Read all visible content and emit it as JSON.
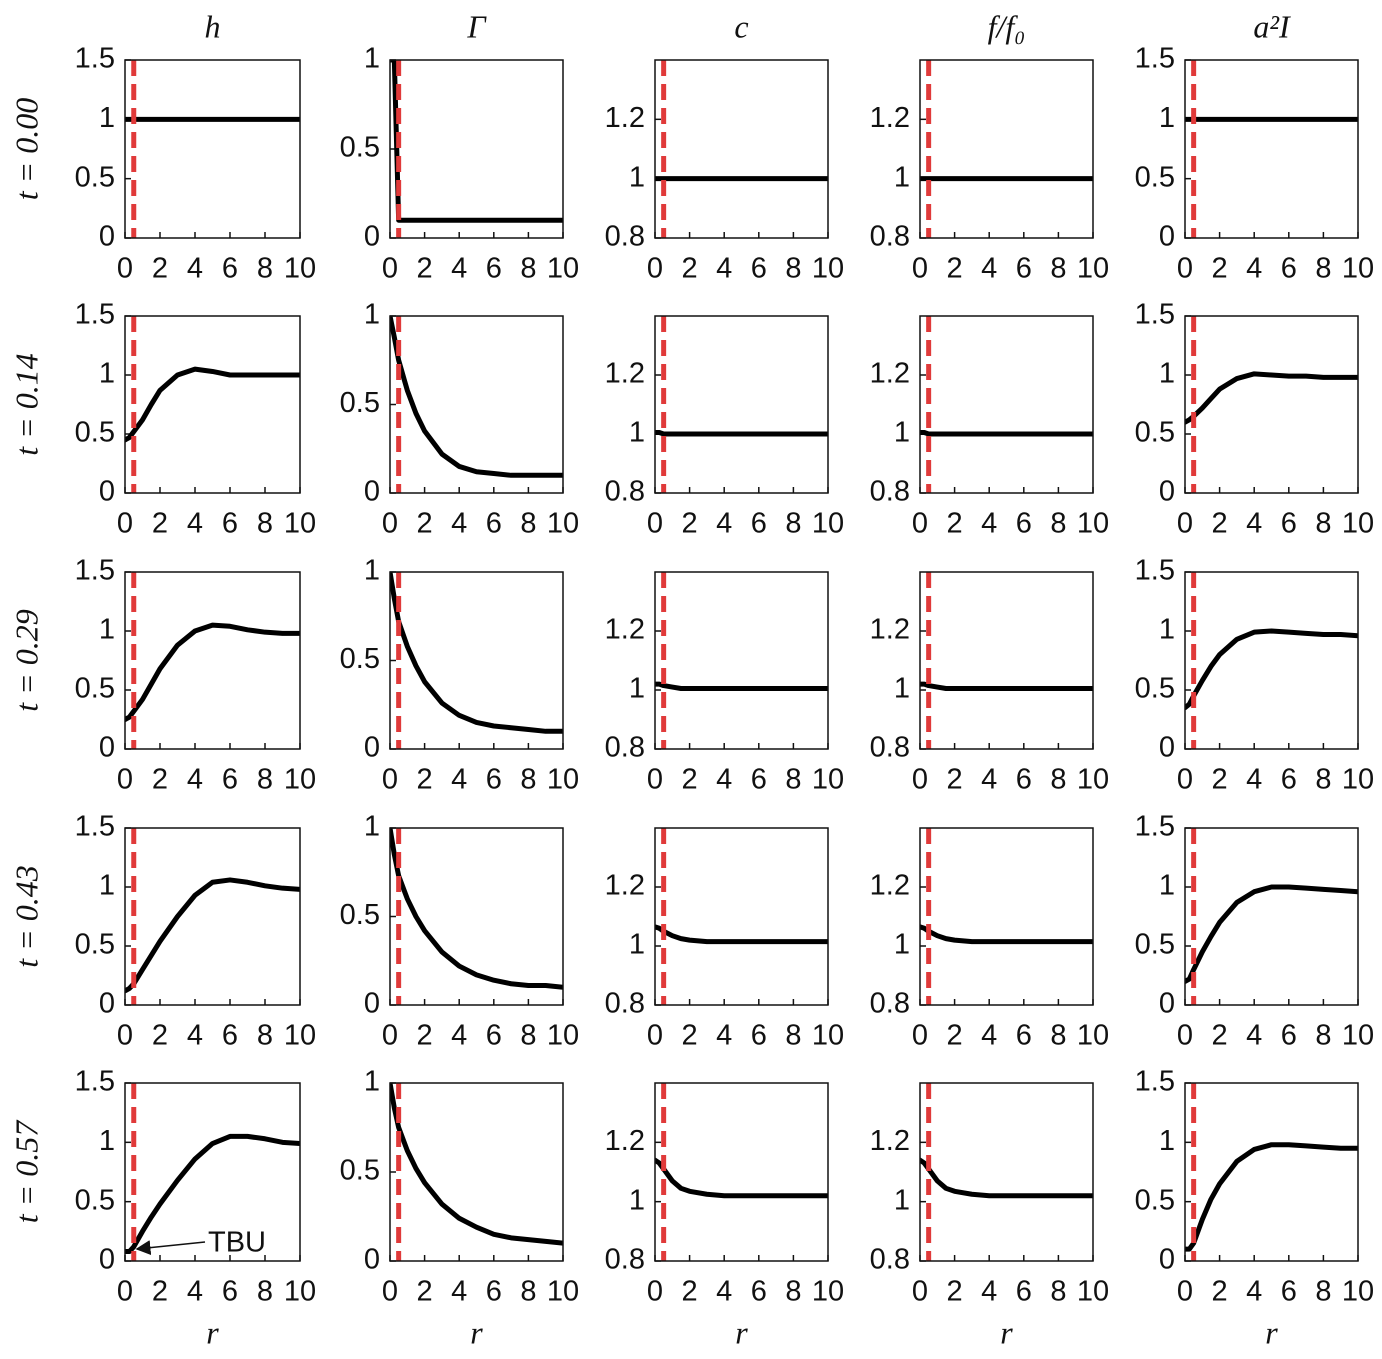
{
  "columns": [
    "h",
    "Γ",
    "c",
    "f/f₀",
    "a²I"
  ],
  "rows": [
    "t = 0.00",
    "t = 0.14",
    "t = 0.29",
    "t = 0.43",
    "t = 0.57"
  ],
  "x_label": "r",
  "chart_data": [
    {
      "type": "line",
      "x": [
        0,
        0.25,
        0.5,
        1,
        1.5,
        2,
        3,
        4,
        5,
        6,
        7,
        8,
        9,
        10
      ],
      "values": [
        1,
        1,
        1,
        1,
        1,
        1,
        1,
        1,
        1,
        1,
        1,
        1,
        1,
        1
      ],
      "color": "#000000",
      "xlim": [
        0,
        10
      ],
      "ylim": [
        0,
        1.5
      ],
      "xticks": [
        0,
        2,
        4,
        6,
        8,
        10
      ],
      "yticks": [
        0,
        0.5,
        1,
        1.5
      ],
      "vline": 0.5,
      "vline_color": "#e03a3a"
    },
    {
      "type": "line",
      "x": [
        0,
        0.25,
        0.5,
        1,
        1.5,
        2,
        3,
        4,
        5,
        6,
        7,
        8,
        9,
        10
      ],
      "values": [
        1,
        1,
        0.1,
        0.1,
        0.1,
        0.1,
        0.1,
        0.1,
        0.1,
        0.1,
        0.1,
        0.1,
        0.1,
        0.1
      ],
      "color": "#000000",
      "xlim": [
        0,
        10
      ],
      "ylim": [
        0,
        1
      ],
      "xticks": [
        0,
        2,
        4,
        6,
        8,
        10
      ],
      "yticks": [
        0,
        0.5,
        1
      ],
      "vline": 0.5,
      "vline_color": "#e03a3a"
    },
    {
      "type": "line",
      "x": [
        0,
        0.25,
        0.5,
        1,
        1.5,
        2,
        3,
        4,
        5,
        6,
        7,
        8,
        9,
        10
      ],
      "values": [
        1,
        1,
        1,
        1,
        1,
        1,
        1,
        1,
        1,
        1,
        1,
        1,
        1,
        1
      ],
      "color": "#000000",
      "xlim": [
        0,
        10
      ],
      "ylim": [
        0.8,
        1.4
      ],
      "xticks": [
        0,
        2,
        4,
        6,
        8,
        10
      ],
      "yticks": [
        0.8,
        1,
        1.2
      ],
      "vline": 0.5,
      "vline_color": "#e03a3a"
    },
    {
      "type": "line",
      "x": [
        0,
        0.25,
        0.5,
        1,
        1.5,
        2,
        3,
        4,
        5,
        6,
        7,
        8,
        9,
        10
      ],
      "values": [
        1,
        1,
        1,
        1,
        1,
        1,
        1,
        1,
        1,
        1,
        1,
        1,
        1,
        1
      ],
      "color": "#000000",
      "xlim": [
        0,
        10
      ],
      "ylim": [
        0.8,
        1.4
      ],
      "xticks": [
        0,
        2,
        4,
        6,
        8,
        10
      ],
      "yticks": [
        0.8,
        1,
        1.2
      ],
      "vline": 0.5,
      "vline_color": "#e03a3a"
    },
    {
      "type": "line",
      "x": [
        0,
        0.25,
        0.5,
        1,
        1.5,
        2,
        3,
        4,
        5,
        6,
        7,
        8,
        9,
        10
      ],
      "values": [
        1,
        1,
        1,
        1,
        1,
        1,
        1,
        1,
        1,
        1,
        1,
        1,
        1,
        1
      ],
      "color": "#000000",
      "xlim": [
        0,
        10
      ],
      "ylim": [
        0,
        1.5
      ],
      "xticks": [
        0,
        2,
        4,
        6,
        8,
        10
      ],
      "yticks": [
        0,
        0.5,
        1,
        1.5
      ],
      "vline": 0.5,
      "vline_color": "#e03a3a"
    },
    {
      "type": "line",
      "x": [
        0,
        0.25,
        0.5,
        1,
        1.5,
        2,
        3,
        4,
        5,
        6,
        7,
        8,
        9,
        10
      ],
      "values": [
        0.45,
        0.47,
        0.52,
        0.62,
        0.75,
        0.87,
        1.0,
        1.05,
        1.03,
        1.0,
        1.0,
        1.0,
        1.0,
        1.0
      ],
      "color": "#000000",
      "xlim": [
        0,
        10
      ],
      "ylim": [
        0,
        1.5
      ],
      "xticks": [
        0,
        2,
        4,
        6,
        8,
        10
      ],
      "yticks": [
        0,
        0.5,
        1,
        1.5
      ],
      "vline": 0.5,
      "vline_color": "#e03a3a"
    },
    {
      "type": "line",
      "x": [
        0,
        0.25,
        0.5,
        1,
        1.5,
        2,
        3,
        4,
        5,
        6,
        7,
        8,
        9,
        10
      ],
      "values": [
        1,
        0.88,
        0.75,
        0.58,
        0.45,
        0.35,
        0.22,
        0.15,
        0.12,
        0.11,
        0.1,
        0.1,
        0.1,
        0.1
      ],
      "color": "#000000",
      "xlim": [
        0,
        10
      ],
      "ylim": [
        0,
        1
      ],
      "xticks": [
        0,
        2,
        4,
        6,
        8,
        10
      ],
      "yticks": [
        0,
        0.5,
        1
      ],
      "vline": 0.5,
      "vline_color": "#e03a3a"
    },
    {
      "type": "line",
      "x": [
        0,
        0.25,
        0.5,
        1,
        1.5,
        2,
        3,
        4,
        5,
        6,
        7,
        8,
        9,
        10
      ],
      "values": [
        1.005,
        1.005,
        1.0,
        1.0,
        1.0,
        1.0,
        1.0,
        1.0,
        1.0,
        1.0,
        1.0,
        1.0,
        1.0,
        1.0
      ],
      "color": "#000000",
      "xlim": [
        0,
        10
      ],
      "ylim": [
        0.8,
        1.4
      ],
      "xticks": [
        0,
        2,
        4,
        6,
        8,
        10
      ],
      "yticks": [
        0.8,
        1,
        1.2
      ],
      "vline": 0.5,
      "vline_color": "#e03a3a"
    },
    {
      "type": "line",
      "x": [
        0,
        0.25,
        0.5,
        1,
        1.5,
        2,
        3,
        4,
        5,
        6,
        7,
        8,
        9,
        10
      ],
      "values": [
        1.005,
        1.005,
        1.0,
        1.0,
        1.0,
        1.0,
        1.0,
        1.0,
        1.0,
        1.0,
        1.0,
        1.0,
        1.0,
        1.0
      ],
      "color": "#000000",
      "xlim": [
        0,
        10
      ],
      "ylim": [
        0.8,
        1.4
      ],
      "xticks": [
        0,
        2,
        4,
        6,
        8,
        10
      ],
      "yticks": [
        0.8,
        1,
        1.2
      ],
      "vline": 0.5,
      "vline_color": "#e03a3a"
    },
    {
      "type": "line",
      "x": [
        0,
        0.25,
        0.5,
        1,
        1.5,
        2,
        3,
        4,
        5,
        6,
        7,
        8,
        9,
        10
      ],
      "values": [
        0.6,
        0.62,
        0.65,
        0.72,
        0.8,
        0.88,
        0.97,
        1.01,
        1.0,
        0.99,
        0.99,
        0.98,
        0.98,
        0.98
      ],
      "color": "#000000",
      "xlim": [
        0,
        10
      ],
      "ylim": [
        0,
        1.5
      ],
      "xticks": [
        0,
        2,
        4,
        6,
        8,
        10
      ],
      "yticks": [
        0,
        0.5,
        1,
        1.5
      ],
      "vline": 0.5,
      "vline_color": "#e03a3a"
    },
    {
      "type": "line",
      "x": [
        0,
        0.25,
        0.5,
        1,
        1.5,
        2,
        3,
        4,
        5,
        6,
        7,
        8,
        9,
        10
      ],
      "values": [
        0.25,
        0.27,
        0.32,
        0.42,
        0.55,
        0.68,
        0.88,
        1.0,
        1.05,
        1.04,
        1.01,
        0.99,
        0.98,
        0.98
      ],
      "color": "#000000",
      "xlim": [
        0,
        10
      ],
      "ylim": [
        0,
        1.5
      ],
      "xticks": [
        0,
        2,
        4,
        6,
        8,
        10
      ],
      "yticks": [
        0,
        0.5,
        1,
        1.5
      ],
      "vline": 0.5,
      "vline_color": "#e03a3a"
    },
    {
      "type": "line",
      "x": [
        0,
        0.25,
        0.5,
        1,
        1.5,
        2,
        3,
        4,
        5,
        6,
        7,
        8,
        9,
        10
      ],
      "values": [
        1,
        0.85,
        0.72,
        0.58,
        0.47,
        0.38,
        0.26,
        0.19,
        0.15,
        0.13,
        0.12,
        0.11,
        0.1,
        0.1
      ],
      "color": "#000000",
      "xlim": [
        0,
        10
      ],
      "ylim": [
        0,
        1
      ],
      "xticks": [
        0,
        2,
        4,
        6,
        8,
        10
      ],
      "yticks": [
        0,
        0.5,
        1
      ],
      "vline": 0.5,
      "vline_color": "#e03a3a"
    },
    {
      "type": "line",
      "x": [
        0,
        0.25,
        0.5,
        1,
        1.5,
        2,
        3,
        4,
        5,
        6,
        7,
        8,
        9,
        10
      ],
      "values": [
        1.02,
        1.02,
        1.015,
        1.01,
        1.005,
        1.005,
        1.005,
        1.005,
        1.005,
        1.005,
        1.005,
        1.005,
        1.005,
        1.005
      ],
      "color": "#000000",
      "xlim": [
        0,
        10
      ],
      "ylim": [
        0.8,
        1.4
      ],
      "xticks": [
        0,
        2,
        4,
        6,
        8,
        10
      ],
      "yticks": [
        0.8,
        1,
        1.2
      ],
      "vline": 0.5,
      "vline_color": "#e03a3a"
    },
    {
      "type": "line",
      "x": [
        0,
        0.25,
        0.5,
        1,
        1.5,
        2,
        3,
        4,
        5,
        6,
        7,
        8,
        9,
        10
      ],
      "values": [
        1.02,
        1.02,
        1.015,
        1.01,
        1.005,
        1.005,
        1.005,
        1.005,
        1.005,
        1.005,
        1.005,
        1.005,
        1.005,
        1.005
      ],
      "color": "#000000",
      "xlim": [
        0,
        10
      ],
      "ylim": [
        0.8,
        1.4
      ],
      "xticks": [
        0,
        2,
        4,
        6,
        8,
        10
      ],
      "yticks": [
        0.8,
        1,
        1.2
      ],
      "vline": 0.5,
      "vline_color": "#e03a3a"
    },
    {
      "type": "line",
      "x": [
        0,
        0.25,
        0.5,
        1,
        1.5,
        2,
        3,
        4,
        5,
        6,
        7,
        8,
        9,
        10
      ],
      "values": [
        0.35,
        0.38,
        0.45,
        0.58,
        0.7,
        0.8,
        0.93,
        0.99,
        1.0,
        0.99,
        0.98,
        0.97,
        0.97,
        0.96
      ],
      "color": "#000000",
      "xlim": [
        0,
        10
      ],
      "ylim": [
        0,
        1.5
      ],
      "xticks": [
        0,
        2,
        4,
        6,
        8,
        10
      ],
      "yticks": [
        0,
        0.5,
        1,
        1.5
      ],
      "vline": 0.5,
      "vline_color": "#e03a3a"
    },
    {
      "type": "line",
      "x": [
        0,
        0.25,
        0.5,
        1,
        1.5,
        2,
        3,
        4,
        5,
        6,
        7,
        8,
        9,
        10
      ],
      "values": [
        0.12,
        0.14,
        0.18,
        0.3,
        0.42,
        0.54,
        0.75,
        0.93,
        1.04,
        1.06,
        1.04,
        1.01,
        0.99,
        0.98
      ],
      "color": "#000000",
      "xlim": [
        0,
        10
      ],
      "ylim": [
        0,
        1.5
      ],
      "xticks": [
        0,
        2,
        4,
        6,
        8,
        10
      ],
      "yticks": [
        0,
        0.5,
        1,
        1.5
      ],
      "vline": 0.5,
      "vline_color": "#e03a3a"
    },
    {
      "type": "line",
      "x": [
        0,
        0.25,
        0.5,
        1,
        1.5,
        2,
        3,
        4,
        5,
        6,
        7,
        8,
        9,
        10
      ],
      "values": [
        1,
        0.85,
        0.73,
        0.6,
        0.5,
        0.42,
        0.3,
        0.22,
        0.17,
        0.14,
        0.12,
        0.11,
        0.11,
        0.1
      ],
      "color": "#000000",
      "xlim": [
        0,
        10
      ],
      "ylim": [
        0,
        1
      ],
      "xticks": [
        0,
        2,
        4,
        6,
        8,
        10
      ],
      "yticks": [
        0,
        0.5,
        1
      ],
      "vline": 0.5,
      "vline_color": "#e03a3a"
    },
    {
      "type": "line",
      "x": [
        0,
        0.25,
        0.5,
        1,
        1.5,
        2,
        3,
        4,
        5,
        6,
        7,
        8,
        9,
        10
      ],
      "values": [
        1.065,
        1.06,
        1.05,
        1.035,
        1.025,
        1.02,
        1.015,
        1.015,
        1.015,
        1.015,
        1.015,
        1.015,
        1.015,
        1.015
      ],
      "color": "#000000",
      "xlim": [
        0,
        10
      ],
      "ylim": [
        0.8,
        1.4
      ],
      "xticks": [
        0,
        2,
        4,
        6,
        8,
        10
      ],
      "yticks": [
        0.8,
        1,
        1.2
      ],
      "vline": 0.5,
      "vline_color": "#e03a3a"
    },
    {
      "type": "line",
      "x": [
        0,
        0.25,
        0.5,
        1,
        1.5,
        2,
        3,
        4,
        5,
        6,
        7,
        8,
        9,
        10
      ],
      "values": [
        1.065,
        1.06,
        1.05,
        1.035,
        1.025,
        1.02,
        1.015,
        1.015,
        1.015,
        1.015,
        1.015,
        1.015,
        1.015,
        1.015
      ],
      "color": "#000000",
      "xlim": [
        0,
        10
      ],
      "ylim": [
        0.8,
        1.4
      ],
      "xticks": [
        0,
        2,
        4,
        6,
        8,
        10
      ],
      "yticks": [
        0.8,
        1,
        1.2
      ],
      "vline": 0.5,
      "vline_color": "#e03a3a"
    },
    {
      "type": "line",
      "x": [
        0,
        0.25,
        0.5,
        1,
        1.5,
        2,
        3,
        4,
        5,
        6,
        7,
        8,
        9,
        10
      ],
      "values": [
        0.2,
        0.22,
        0.3,
        0.45,
        0.58,
        0.7,
        0.87,
        0.96,
        1.0,
        1.0,
        0.99,
        0.98,
        0.97,
        0.96
      ],
      "color": "#000000",
      "xlim": [
        0,
        10
      ],
      "ylim": [
        0,
        1.5
      ],
      "xticks": [
        0,
        2,
        4,
        6,
        8,
        10
      ],
      "yticks": [
        0,
        0.5,
        1,
        1.5
      ],
      "vline": 0.5,
      "vline_color": "#e03a3a"
    },
    {
      "type": "line",
      "x": [
        0,
        0.25,
        0.5,
        1,
        1.5,
        2,
        3,
        4,
        5,
        6,
        7,
        8,
        9,
        10
      ],
      "values": [
        0.08,
        0.08,
        0.12,
        0.25,
        0.37,
        0.48,
        0.68,
        0.86,
        0.99,
        1.05,
        1.05,
        1.03,
        1.0,
        0.99
      ],
      "color": "#000000",
      "xlim": [
        0,
        10
      ],
      "ylim": [
        0,
        1.5
      ],
      "xticks": [
        0,
        2,
        4,
        6,
        8,
        10
      ],
      "yticks": [
        0,
        0.5,
        1,
        1.5
      ],
      "vline": 0.5,
      "vline_color": "#e03a3a",
      "annotation": "TBU"
    },
    {
      "type": "line",
      "x": [
        0,
        0.25,
        0.5,
        1,
        1.5,
        2,
        3,
        4,
        5,
        6,
        7,
        8,
        9,
        10
      ],
      "values": [
        1,
        0.86,
        0.75,
        0.62,
        0.52,
        0.44,
        0.32,
        0.24,
        0.19,
        0.15,
        0.13,
        0.12,
        0.11,
        0.1
      ],
      "color": "#000000",
      "xlim": [
        0,
        10
      ],
      "ylim": [
        0,
        1
      ],
      "xticks": [
        0,
        2,
        4,
        6,
        8,
        10
      ],
      "yticks": [
        0,
        0.5,
        1
      ],
      "vline": 0.5,
      "vline_color": "#e03a3a"
    },
    {
      "type": "line",
      "x": [
        0,
        0.25,
        0.5,
        1,
        1.5,
        2,
        3,
        4,
        5,
        6,
        7,
        8,
        9,
        10
      ],
      "values": [
        1.14,
        1.13,
        1.11,
        1.07,
        1.045,
        1.035,
        1.025,
        1.02,
        1.02,
        1.02,
        1.02,
        1.02,
        1.02,
        1.02
      ],
      "color": "#000000",
      "xlim": [
        0,
        10
      ],
      "ylim": [
        0.8,
        1.4
      ],
      "xticks": [
        0,
        2,
        4,
        6,
        8,
        10
      ],
      "yticks": [
        0.8,
        1,
        1.2
      ],
      "vline": 0.5,
      "vline_color": "#e03a3a"
    },
    {
      "type": "line",
      "x": [
        0,
        0.25,
        0.5,
        1,
        1.5,
        2,
        3,
        4,
        5,
        6,
        7,
        8,
        9,
        10
      ],
      "values": [
        1.14,
        1.13,
        1.11,
        1.07,
        1.045,
        1.035,
        1.025,
        1.02,
        1.02,
        1.02,
        1.02,
        1.02,
        1.02,
        1.02
      ],
      "color": "#000000",
      "xlim": [
        0,
        10
      ],
      "ylim": [
        0.8,
        1.4
      ],
      "xticks": [
        0,
        2,
        4,
        6,
        8,
        10
      ],
      "yticks": [
        0.8,
        1,
        1.2
      ],
      "vline": 0.5,
      "vline_color": "#e03a3a"
    },
    {
      "type": "line",
      "x": [
        0,
        0.25,
        0.5,
        1,
        1.5,
        2,
        3,
        4,
        5,
        6,
        7,
        8,
        9,
        10
      ],
      "values": [
        0.1,
        0.1,
        0.15,
        0.35,
        0.52,
        0.65,
        0.84,
        0.94,
        0.98,
        0.98,
        0.97,
        0.96,
        0.95,
        0.95
      ],
      "color": "#000000",
      "xlim": [
        0,
        10
      ],
      "ylim": [
        0,
        1.5
      ],
      "xticks": [
        0,
        2,
        4,
        6,
        8,
        10
      ],
      "yticks": [
        0,
        0.5,
        1,
        1.5
      ],
      "vline": 0.5,
      "vline_color": "#e03a3a"
    }
  ]
}
